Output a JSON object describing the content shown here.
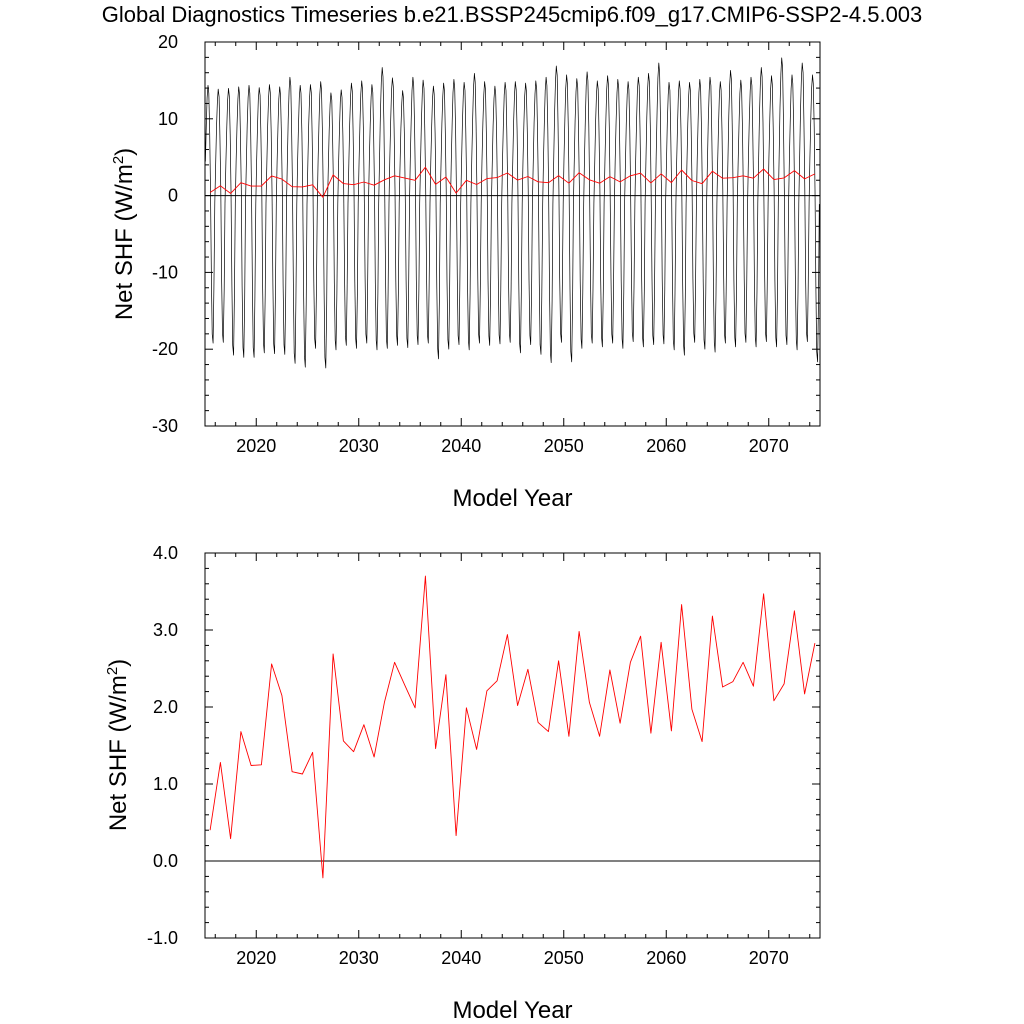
{
  "title": "Global Diagnostics Timeseries b.e21.BSSP245cmip6.f09_g17.CMIP6-SSP2-4.5.003",
  "colors": {
    "monthly": "#000000",
    "annual": "#ff0000",
    "reference": "#000000"
  },
  "chart_data": [
    {
      "type": "line",
      "xlabel": "Model Year",
      "ylabel": "Net SHF (W/m",
      "ylabel_sup": "2",
      "ylabel_close": ")",
      "xlim": [
        2015,
        2075
      ],
      "ylim": [
        -30,
        20
      ],
      "xticks": [
        2020,
        2030,
        2040,
        2050,
        2060,
        2070
      ],
      "xtick_labels": [
        "2020",
        "2030",
        "2040",
        "2050",
        "2060",
        "2070"
      ],
      "yticks": [
        -30,
        -20,
        -10,
        0,
        10,
        20
      ],
      "ytick_labels": [
        "-30",
        "-20",
        "-10",
        "0",
        "10",
        "20"
      ],
      "reference_line": 0,
      "grid": false,
      "series": [
        {
          "kind": "monthly",
          "start": 2015.04,
          "step": 0.0833,
          "seasonal_max": [
            14.8,
            14.3,
            14.4,
            14.6,
            14.8,
            14.5,
            14.9,
            14.6,
            15.9,
            14.8,
            14.9,
            15.3,
            13.8,
            14.2,
            15.1,
            15.4,
            14.9,
            17.2,
            15.8,
            14.1,
            15.9,
            15.5,
            14.7,
            15.1,
            15.6,
            15.2,
            16.4,
            15.3,
            14.7,
            15.2,
            15.3,
            15.1,
            15.4,
            15.9,
            17.4,
            16.2,
            15.7,
            16.6,
            15.4,
            16.1,
            15.6,
            15.3,
            15.9,
            16.4,
            17.8,
            15.2,
            15.4,
            15.2,
            15.6,
            15.9,
            15.3,
            16.8,
            15.5,
            15.9,
            17.2,
            16.1,
            18.5,
            16.2,
            17.8,
            16.2
          ],
          "seasonal_min": [
            -19.6,
            -19.5,
            -21.2,
            -21.5,
            -21.5,
            -20.9,
            -21.0,
            -21.1,
            -22.3,
            -22.8,
            -20.3,
            -22.9,
            -20.5,
            -19.9,
            -20.3,
            -19.6,
            -20.5,
            -20.3,
            -19.9,
            -20.2,
            -19.8,
            -19.6,
            -21.7,
            -20.4,
            -19.8,
            -20.5,
            -19.6,
            -19.9,
            -19.7,
            -19.5,
            -20.9,
            -19.8,
            -21.1,
            -22.2,
            -19.5,
            -22.1,
            -20.3,
            -19.6,
            -20.1,
            -19.6,
            -20.3,
            -19.4,
            -20.1,
            -19.8,
            -19.7,
            -20.5,
            -21.2,
            -19.5,
            -20.4,
            -20.8,
            -19.6,
            -20.1,
            -19.5,
            -20.1,
            -19.4,
            -20.1,
            -19.8,
            -20.5,
            -19.4,
            -22.1
          ]
        },
        {
          "kind": "annual",
          "x": [
            2015.5,
            2016.5,
            2017.5,
            2018.5,
            2019.5,
            2020.5,
            2021.5,
            2022.5,
            2023.5,
            2024.5,
            2025.5,
            2026.5,
            2027.5,
            2028.5,
            2029.5,
            2030.5,
            2031.5,
            2032.5,
            2033.5,
            2034.5,
            2035.5,
            2036.5,
            2037.5,
            2038.5,
            2039.5,
            2040.5,
            2041.5,
            2042.5,
            2043.5,
            2044.5,
            2045.5,
            2046.5,
            2047.5,
            2048.5,
            2049.5,
            2050.5,
            2051.5,
            2052.5,
            2053.5,
            2054.5,
            2055.5,
            2056.5,
            2057.5,
            2058.5,
            2059.5,
            2060.5,
            2061.5,
            2062.5,
            2063.5,
            2064.5,
            2065.5,
            2066.5,
            2067.5,
            2068.5,
            2069.5,
            2070.5,
            2071.5,
            2072.5,
            2073.5,
            2074.5
          ],
          "y": [
            0.4,
            1.28,
            0.29,
            1.68,
            1.24,
            1.25,
            2.56,
            2.15,
            1.16,
            1.13,
            1.41,
            -0.22,
            2.69,
            1.56,
            1.42,
            1.77,
            1.35,
            2.06,
            2.58,
            2.28,
            1.99,
            3.7,
            1.46,
            2.42,
            0.33,
            1.99,
            1.45,
            2.21,
            2.34,
            2.94,
            2.02,
            2.49,
            1.8,
            1.68,
            2.6,
            1.62,
            2.98,
            2.06,
            1.62,
            2.48,
            1.79,
            2.58,
            2.92,
            1.66,
            2.84,
            1.69,
            3.33,
            1.97,
            1.55,
            3.18,
            2.26,
            2.33,
            2.58,
            2.27,
            3.47,
            2.08,
            2.3,
            3.25,
            2.17,
            2.83
          ]
        }
      ]
    },
    {
      "type": "line",
      "xlabel": "Model Year",
      "ylabel": "Net SHF (W/m",
      "ylabel_sup": "2",
      "ylabel_close": ")",
      "xlim": [
        2015,
        2075
      ],
      "ylim": [
        -1.0,
        4.0
      ],
      "xticks": [
        2020,
        2030,
        2040,
        2050,
        2060,
        2070
      ],
      "xtick_labels": [
        "2020",
        "2030",
        "2040",
        "2050",
        "2060",
        "2070"
      ],
      "yticks": [
        -1,
        0,
        1,
        2,
        3,
        4
      ],
      "ytick_labels": [
        "-1.0",
        "0.0",
        "1.0",
        "2.0",
        "3.0",
        "4.0"
      ],
      "reference_line": 0,
      "grid": false,
      "series": [
        {
          "kind": "annual",
          "x": [
            2015.5,
            2016.5,
            2017.5,
            2018.5,
            2019.5,
            2020.5,
            2021.5,
            2022.5,
            2023.5,
            2024.5,
            2025.5,
            2026.5,
            2027.5,
            2028.5,
            2029.5,
            2030.5,
            2031.5,
            2032.5,
            2033.5,
            2034.5,
            2035.5,
            2036.5,
            2037.5,
            2038.5,
            2039.5,
            2040.5,
            2041.5,
            2042.5,
            2043.5,
            2044.5,
            2045.5,
            2046.5,
            2047.5,
            2048.5,
            2049.5,
            2050.5,
            2051.5,
            2052.5,
            2053.5,
            2054.5,
            2055.5,
            2056.5,
            2057.5,
            2058.5,
            2059.5,
            2060.5,
            2061.5,
            2062.5,
            2063.5,
            2064.5,
            2065.5,
            2066.5,
            2067.5,
            2068.5,
            2069.5,
            2070.5,
            2071.5,
            2072.5,
            2073.5,
            2074.5
          ],
          "y": [
            0.4,
            1.28,
            0.29,
            1.68,
            1.24,
            1.25,
            2.56,
            2.15,
            1.16,
            1.13,
            1.41,
            -0.22,
            2.69,
            1.56,
            1.42,
            1.77,
            1.35,
            2.06,
            2.58,
            2.28,
            1.99,
            3.7,
            1.46,
            2.42,
            0.33,
            1.99,
            1.45,
            2.21,
            2.34,
            2.94,
            2.02,
            2.49,
            1.8,
            1.68,
            2.6,
            1.62,
            2.98,
            2.06,
            1.62,
            2.48,
            1.79,
            2.58,
            2.92,
            1.66,
            2.84,
            1.69,
            3.33,
            1.97,
            1.55,
            3.18,
            2.26,
            2.33,
            2.58,
            2.27,
            3.47,
            2.08,
            2.3,
            3.25,
            2.17,
            2.83
          ]
        }
      ]
    }
  ]
}
